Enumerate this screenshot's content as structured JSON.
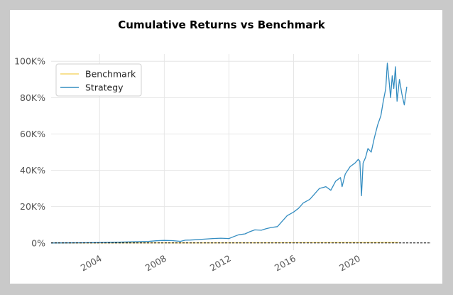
{
  "chart_data": {
    "type": "line",
    "title": "Cumulative Returns vs Benchmark",
    "xlabel": "",
    "ylabel": "",
    "xlim": [
      2001.0,
      2024.5
    ],
    "ylim": [
      -4000,
      104000
    ],
    "x_ticks": [
      2004,
      2008,
      2012,
      2016,
      2020
    ],
    "x_tick_labels": [
      "2004",
      "2008",
      "2012",
      "2016",
      "2020"
    ],
    "y_ticks": [
      0,
      20000,
      40000,
      60000,
      80000,
      100000
    ],
    "y_tick_labels": [
      "0%",
      "20K%",
      "40K%",
      "60K%",
      "80K%",
      "100K%"
    ],
    "grid": true,
    "legend_position": "top-left",
    "zero_line": "dashed",
    "colors": {
      "benchmark": "#f5d76e",
      "strategy": "#348dc1",
      "zero_line": "#000000"
    },
    "series": [
      {
        "name": "Benchmark",
        "color": "#f5d76e",
        "x": [
          2001.0,
          2004,
          2008,
          2009,
          2012,
          2016,
          2020,
          2022.5
        ],
        "y": [
          0,
          30,
          60,
          40,
          70,
          150,
          280,
          300
        ]
      },
      {
        "name": "Strategy",
        "color": "#348dc1",
        "x": [
          2001.0,
          2003,
          2004,
          2005,
          2006,
          2007,
          2007.5,
          2008,
          2008.5,
          2009,
          2009.3,
          2009.6,
          2010,
          2010.5,
          2011,
          2011.5,
          2012,
          2012.3,
          2012.6,
          2013,
          2013.3,
          2013.6,
          2014,
          2014.3,
          2014.6,
          2015,
          2015.3,
          2015.6,
          2016,
          2016.3,
          2016.6,
          2017,
          2017.3,
          2017.6,
          2018,
          2018.3,
          2018.6,
          2018.9,
          2019,
          2019.2,
          2019.5,
          2019.8,
          2020,
          2020.1,
          2020.2,
          2020.3,
          2020.45,
          2020.6,
          2020.8,
          2021,
          2021.2,
          2021.4,
          2021.55,
          2021.7,
          2021.8,
          2021.9,
          2022.0,
          2022.1,
          2022.2,
          2022.3,
          2022.4,
          2022.55,
          2022.7,
          2022.85,
          2023.0
        ],
        "y": [
          0,
          100,
          200,
          400,
          600,
          800,
          1200,
          1400,
          1300,
          900,
          1500,
          1600,
          1800,
          2100,
          2400,
          2600,
          2400,
          3500,
          4500,
          5000,
          6200,
          7200,
          7000,
          7800,
          8500,
          9000,
          12000,
          15000,
          17000,
          19000,
          22000,
          24000,
          27000,
          30000,
          31000,
          29000,
          34000,
          36000,
          31000,
          38000,
          42000,
          44000,
          46000,
          45000,
          26000,
          44000,
          47000,
          52000,
          50000,
          58000,
          65000,
          70000,
          78000,
          85000,
          99000,
          90000,
          80000,
          92000,
          85000,
          97000,
          78000,
          90000,
          82000,
          76000,
          86000
        ]
      }
    ]
  }
}
